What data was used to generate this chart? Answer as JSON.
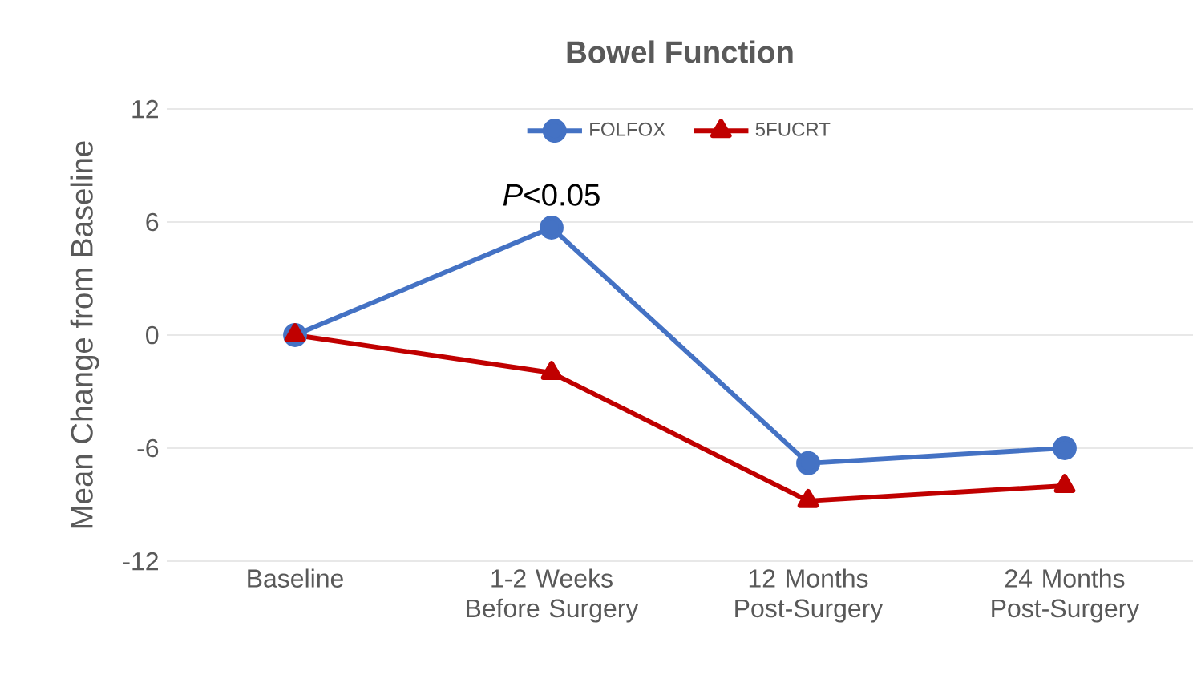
{
  "chart_data": {
    "type": "line",
    "title": "Bowel Function",
    "ylabel": "Mean Change from Baseline",
    "categories": [
      "Baseline",
      "1-2 Weeks Before Surgery",
      "12 Months Post-Surgery",
      "24 Months Post-Surgery"
    ],
    "series": [
      {
        "name": "FOLFOX",
        "color": "#4472c4",
        "marker": "circle",
        "values": [
          0,
          5.7,
          -6.8,
          -6.0
        ]
      },
      {
        "name": "5FUCRT",
        "color": "#c00000",
        "marker": "triangle",
        "values": [
          0,
          -2.0,
          -8.8,
          -8.0
        ]
      }
    ],
    "ylim": [
      -12,
      12
    ],
    "yticks": [
      -12,
      -6,
      0,
      6,
      12
    ],
    "grid": "y",
    "legend": "top",
    "annotations": [
      "*P*<0.05"
    ]
  }
}
